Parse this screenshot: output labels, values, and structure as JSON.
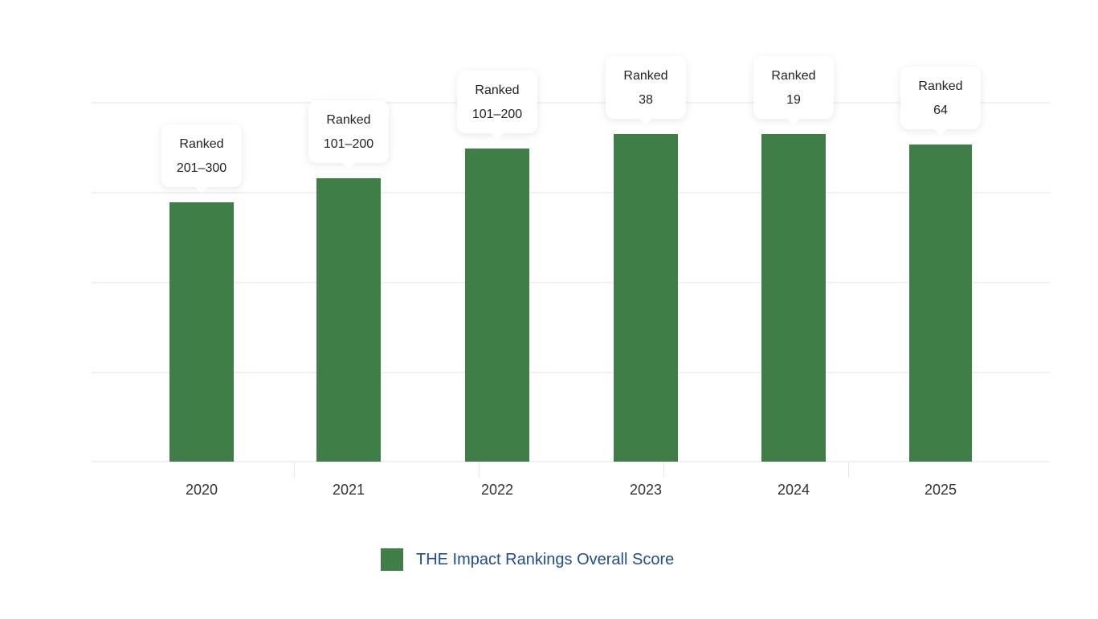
{
  "chart_data": {
    "type": "bar",
    "title": "",
    "xlabel": "",
    "ylabel": "",
    "categories": [
      "2020",
      "2021",
      "2022",
      "2023",
      "2024",
      "2025"
    ],
    "series": [
      {
        "name": "THE Impact Rankings Overall Score",
        "color": "#3f7f47",
        "values": [
          72.1,
          78.8,
          87.1,
          91.1,
          91.1,
          88.2
        ]
      }
    ],
    "annotations": [
      {
        "category": "2020",
        "line1": "Ranked",
        "line2": "201–300"
      },
      {
        "category": "2021",
        "line1": "Ranked",
        "line2": "101–200"
      },
      {
        "category": "2022",
        "line1": "Ranked",
        "line2": "101–200"
      },
      {
        "category": "2023",
        "line1": "Ranked",
        "line2": "38"
      },
      {
        "category": "2024",
        "line1": "Ranked",
        "line2": "19"
      },
      {
        "category": "2025",
        "line1": "Ranked",
        "line2": "64"
      }
    ],
    "ylim": [
      0,
      100
    ],
    "y_ticks_visible": false,
    "grid": true,
    "gridline_count": 5,
    "legend_position": "bottom"
  },
  "legend": {
    "label": "THE Impact Rankings Overall Score",
    "swatch_color": "#3f7f47"
  }
}
